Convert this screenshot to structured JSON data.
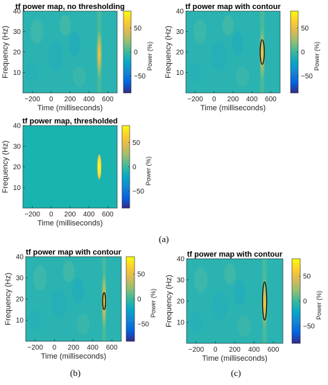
{
  "figure": {
    "subfigure_labels": [
      "(a)",
      "(b)",
      "(c)"
    ]
  },
  "colors": {
    "colormap": [
      "#352a87",
      "#0363e1",
      "#1485d4",
      "#06a7c6",
      "#38b99e",
      "#92bf73",
      "#d9ba56",
      "#fcce2e",
      "#f9fb0e"
    ],
    "contour": "#000000",
    "axis_text": "#262626"
  },
  "chart_data": [
    {
      "type": "heatmap",
      "title": "tf power map, no thresholding",
      "xlabel": "Time (milliseconds)",
      "ylabel": "Frequency (Hz)",
      "xlim": [
        -300,
        700
      ],
      "ylim": [
        0,
        40
      ],
      "xticks": [
        -200,
        0,
        200,
        400,
        600
      ],
      "yticks": [
        10,
        20,
        30,
        40
      ],
      "colorbar": {
        "label": "Power (%)",
        "range": [
          -85,
          85
        ],
        "ticks": [
          -50,
          0,
          50
        ]
      },
      "blob": {
        "center_time": 510,
        "center_freq": 19,
        "time_halfwidth": 25,
        "freq_halfwidth": 9,
        "peak_power": 75
      },
      "thresholded": false,
      "contour": false,
      "grid": false
    },
    {
      "type": "heatmap",
      "title": "tf power map with contour",
      "xlabel": "Time (milliseconds)",
      "ylabel": "Frequency (Hz)",
      "xlim": [
        -300,
        700
      ],
      "ylim": [
        0,
        40
      ],
      "xticks": [
        -200,
        0,
        200,
        400,
        600
      ],
      "yticks": [
        10,
        20,
        30,
        40
      ],
      "colorbar": {
        "label": "Power (%)",
        "range": [
          -85,
          85
        ],
        "ticks": [
          -50,
          0,
          50
        ]
      },
      "blob": {
        "center_time": 510,
        "center_freq": 19,
        "time_halfwidth": 25,
        "freq_halfwidth": 9,
        "peak_power": 75
      },
      "thresholded": false,
      "contour": {
        "center_time": 510,
        "center_freq": 20,
        "time_radius": 22,
        "freq_radius": 6
      },
      "grid": false
    },
    {
      "type": "heatmap",
      "title": "tf power map, thresholded",
      "xlabel": "Time (milliseconds)",
      "ylabel": "Frequency (Hz)",
      "xlim": [
        -300,
        700
      ],
      "ylim": [
        0,
        40
      ],
      "xticks": [
        -200,
        0,
        200,
        400,
        600
      ],
      "yticks": [
        10,
        20,
        30,
        40
      ],
      "colorbar": {
        "label": "Power (%)",
        "range": [
          -85,
          85
        ],
        "ticks": [
          -50,
          0,
          50
        ]
      },
      "blob": {
        "center_time": 510,
        "center_freq": 20,
        "time_halfwidth": 22,
        "freq_halfwidth": 6,
        "peak_power": 80
      },
      "thresholded": true,
      "contour": false,
      "grid": false
    },
    {
      "type": "heatmap",
      "title": "tf power map with contour",
      "xlabel": "Time (milliseconds)",
      "ylabel": "Frequency (Hz)",
      "xlim": [
        -300,
        700
      ],
      "ylim": [
        0,
        40
      ],
      "xticks": [
        -200,
        0,
        200,
        400,
        600
      ],
      "yticks": [
        10,
        20,
        30,
        40
      ],
      "colorbar": {
        "label": "Power (%)",
        "range": [
          -85,
          85
        ],
        "ticks": [
          -50,
          0,
          50
        ]
      },
      "blob": {
        "center_time": 520,
        "center_freq": 19,
        "time_halfwidth": 22,
        "freq_halfwidth": 10,
        "peak_power": 75
      },
      "thresholded": false,
      "contour": {
        "center_time": 520,
        "center_freq": 19,
        "time_radius": 15,
        "freq_radius": 4
      },
      "grid": false
    },
    {
      "type": "heatmap",
      "title": "tf power map with contour",
      "xlabel": "Time (milliseconds)",
      "ylabel": "Frequency (Hz)",
      "xlim": [
        -300,
        700
      ],
      "ylim": [
        0,
        40
      ],
      "xticks": [
        -200,
        0,
        200,
        400,
        600
      ],
      "yticks": [
        10,
        20,
        30,
        40
      ],
      "colorbar": {
        "label": "Power (%)",
        "range": [
          -85,
          85
        ],
        "ticks": [
          -50,
          0,
          50
        ]
      },
      "blob": {
        "center_time": 510,
        "center_freq": 19,
        "time_halfwidth": 25,
        "freq_halfwidth": 9,
        "peak_power": 75
      },
      "thresholded": false,
      "contour": {
        "center_time": 510,
        "center_freq": 20,
        "time_radius": 22,
        "freq_radius": 9
      },
      "grid": false
    }
  ]
}
